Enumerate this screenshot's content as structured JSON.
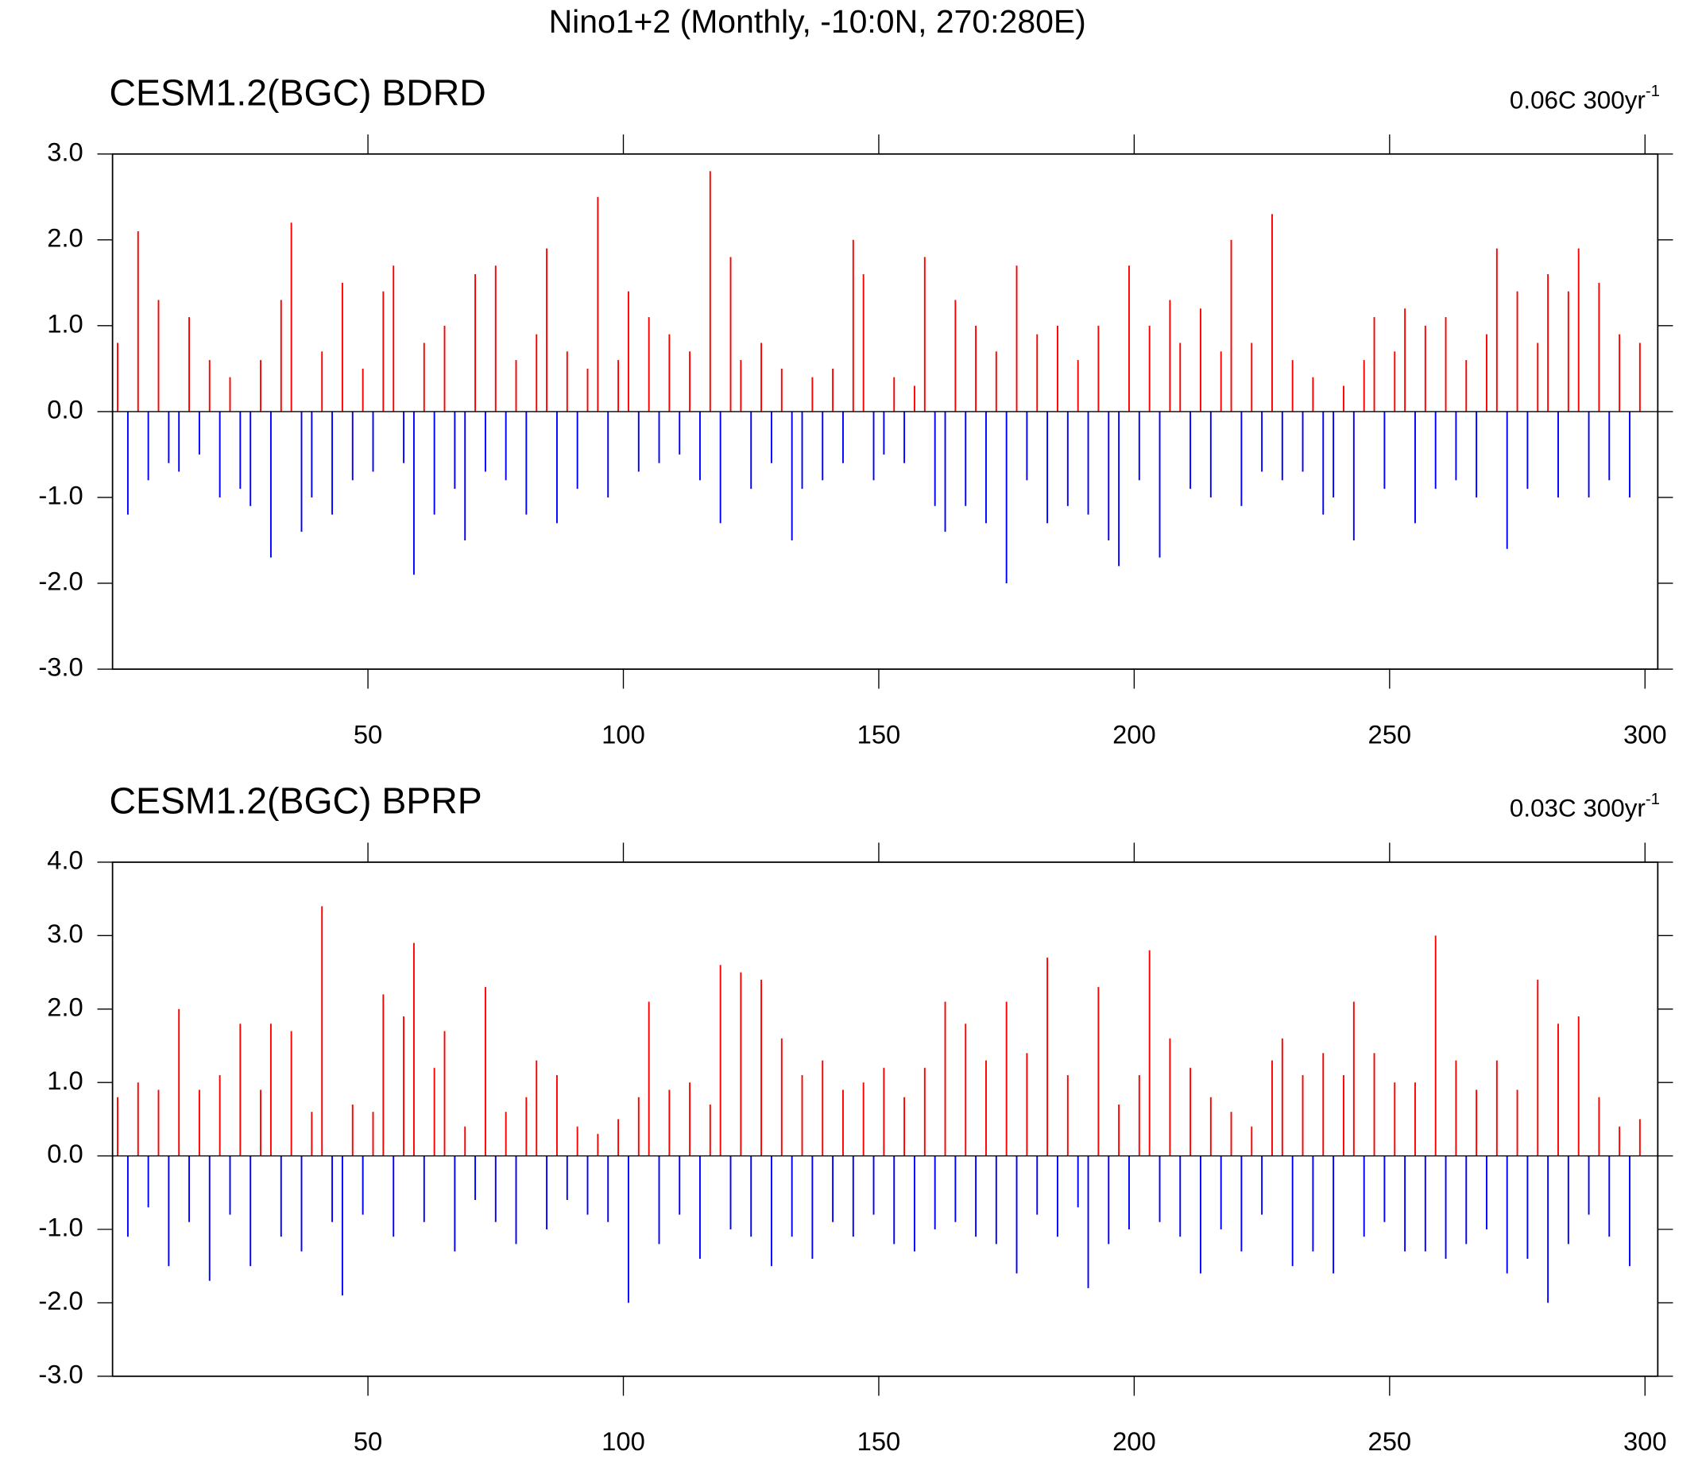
{
  "title": "Nino1+2 (Monthly, -10:0N, 270:280E)",
  "chart_data": [
    {
      "type": "bar",
      "title": "CESM1.2(BGC) BDRD",
      "annotation": "0.06C 300yr",
      "annotation_sup": "-1",
      "positive_color": "#ff0000",
      "negative_color": "#0000ff",
      "xlim": [
        0,
        302.5
      ],
      "xticks": [
        50,
        100,
        150,
        200,
        250,
        300
      ],
      "ylim": [
        -3,
        3
      ],
      "yticks": [
        {
          "value": -3,
          "label": "-3.0"
        },
        {
          "value": -2,
          "label": "-2.0"
        },
        {
          "value": -1,
          "label": "-1.0"
        },
        {
          "value": 0,
          "label": "0.0"
        },
        {
          "value": 1,
          "label": "1.0"
        },
        {
          "value": 2,
          "label": "2.0"
        },
        {
          "value": 3,
          "label": "3.0"
        }
      ],
      "x": [
        1,
        3,
        5,
        7,
        9,
        11,
        13,
        15,
        17,
        19,
        21,
        23,
        25,
        27,
        29,
        31,
        33,
        35,
        37,
        39,
        41,
        43,
        45,
        47,
        49,
        51,
        53,
        55,
        57,
        59,
        61,
        63,
        65,
        67,
        69,
        71,
        73,
        75,
        77,
        79,
        81,
        83,
        85,
        87,
        89,
        91,
        93,
        95,
        97,
        99,
        101,
        103,
        105,
        107,
        109,
        111,
        113,
        115,
        117,
        119,
        121,
        123,
        125,
        127,
        129,
        131,
        133,
        135,
        137,
        139,
        141,
        143,
        145,
        147,
        149,
        151,
        153,
        155,
        157,
        159,
        161,
        163,
        165,
        167,
        169,
        171,
        173,
        175,
        177,
        179,
        181,
        183,
        185,
        187,
        189,
        191,
        193,
        195,
        197,
        199,
        201,
        203,
        205,
        207,
        209,
        211,
        213,
        215,
        217,
        219,
        221,
        223,
        225,
        227,
        229,
        231,
        233,
        235,
        237,
        239,
        241,
        243,
        245,
        247,
        249,
        251,
        253,
        255,
        257,
        259,
        261,
        263,
        265,
        267,
        269,
        271,
        273,
        275,
        277,
        279,
        281,
        283,
        285,
        287,
        289,
        291,
        293,
        295,
        297,
        299
      ],
      "values": [
        0.8,
        -1.2,
        2.1,
        -0.8,
        1.3,
        -0.6,
        -0.7,
        1.1,
        -0.5,
        0.6,
        -1.0,
        0.4,
        -0.9,
        -1.1,
        0.6,
        -1.7,
        1.3,
        2.2,
        -1.4,
        -1.0,
        0.7,
        -1.2,
        1.5,
        -0.8,
        0.5,
        -0.7,
        1.4,
        1.7,
        -0.6,
        -1.9,
        0.8,
        -1.2,
        1.0,
        -0.9,
        -1.5,
        1.6,
        -0.7,
        1.7,
        -0.8,
        0.6,
        -1.2,
        0.9,
        1.9,
        -1.3,
        0.7,
        -0.9,
        0.5,
        2.5,
        -1.0,
        0.6,
        1.4,
        -0.7,
        1.1,
        -0.6,
        0.9,
        -0.5,
        0.7,
        -0.8,
        2.8,
        -1.3,
        1.8,
        0.6,
        -0.9,
        0.8,
        -0.6,
        0.5,
        -1.5,
        -0.9,
        0.4,
        -0.8,
        0.5,
        -0.6,
        2.0,
        1.6,
        -0.8,
        -0.5,
        0.4,
        -0.6,
        0.3,
        1.8,
        -1.1,
        -1.4,
        1.3,
        -1.1,
        1.0,
        -1.3,
        0.7,
        -2.0,
        1.7,
        -0.8,
        0.9,
        -1.3,
        1.0,
        -1.1,
        0.6,
        -1.2,
        1.0,
        -1.5,
        -1.8,
        1.7,
        -0.8,
        1.0,
        -1.7,
        1.3,
        0.8,
        -0.9,
        1.2,
        -1.0,
        0.7,
        2.0,
        -1.1,
        0.8,
        -0.7,
        2.3,
        -0.8,
        0.6,
        -0.7,
        0.4,
        -1.2,
        -1.0,
        0.3,
        -1.5,
        0.6,
        1.1,
        -0.9,
        0.7,
        1.2,
        -1.3,
        1.0,
        -0.9,
        1.1,
        -0.8,
        0.6,
        -1.0,
        0.9,
        1.9,
        -1.6,
        1.4,
        -0.9,
        0.8,
        1.6,
        -1.0,
        1.4,
        1.9,
        -1.0,
        1.5,
        -0.8,
        0.9,
        -1.0,
        0.8
      ]
    },
    {
      "type": "bar",
      "title": "CESM1.2(BGC) BPRP",
      "annotation": "0.03C 300yr",
      "annotation_sup": "-1",
      "positive_color": "#ff0000",
      "negative_color": "#0000ff",
      "xlim": [
        0,
        302.5
      ],
      "xticks": [
        50,
        100,
        150,
        200,
        250,
        300
      ],
      "ylim": [
        -3,
        4
      ],
      "yticks": [
        {
          "value": -3,
          "label": "-3.0"
        },
        {
          "value": -2,
          "label": "-2.0"
        },
        {
          "value": -1,
          "label": "-1.0"
        },
        {
          "value": 0,
          "label": "0.0"
        },
        {
          "value": 1,
          "label": "1.0"
        },
        {
          "value": 2,
          "label": "2.0"
        },
        {
          "value": 3,
          "label": "3.0"
        },
        {
          "value": 4,
          "label": "4.0"
        }
      ],
      "x": [
        1,
        3,
        5,
        7,
        9,
        11,
        13,
        15,
        17,
        19,
        21,
        23,
        25,
        27,
        29,
        31,
        33,
        35,
        37,
        39,
        41,
        43,
        45,
        47,
        49,
        51,
        53,
        55,
        57,
        59,
        61,
        63,
        65,
        67,
        69,
        71,
        73,
        75,
        77,
        79,
        81,
        83,
        85,
        87,
        89,
        91,
        93,
        95,
        97,
        99,
        101,
        103,
        105,
        107,
        109,
        111,
        113,
        115,
        117,
        119,
        121,
        123,
        125,
        127,
        129,
        131,
        133,
        135,
        137,
        139,
        141,
        143,
        145,
        147,
        149,
        151,
        153,
        155,
        157,
        159,
        161,
        163,
        165,
        167,
        169,
        171,
        173,
        175,
        177,
        179,
        181,
        183,
        185,
        187,
        189,
        191,
        193,
        195,
        197,
        199,
        201,
        203,
        205,
        207,
        209,
        211,
        213,
        215,
        217,
        219,
        221,
        223,
        225,
        227,
        229,
        231,
        233,
        235,
        237,
        239,
        241,
        243,
        245,
        247,
        249,
        251,
        253,
        255,
        257,
        259,
        261,
        263,
        265,
        267,
        269,
        271,
        273,
        275,
        277,
        279,
        281,
        283,
        285,
        287,
        289,
        291,
        293,
        295,
        297,
        299
      ],
      "values": [
        0.8,
        -1.1,
        1.0,
        -0.7,
        0.9,
        -1.5,
        2.0,
        -0.9,
        0.9,
        -1.7,
        1.1,
        -0.8,
        1.8,
        -1.5,
        0.9,
        1.8,
        -1.1,
        1.7,
        -1.3,
        0.6,
        3.4,
        -0.9,
        -1.9,
        0.7,
        -0.8,
        0.6,
        2.2,
        -1.1,
        1.9,
        2.9,
        -0.9,
        1.2,
        1.7,
        -1.3,
        0.4,
        -0.6,
        2.3,
        -0.9,
        0.6,
        -1.2,
        0.8,
        1.3,
        -1.0,
        1.1,
        -0.6,
        0.4,
        -0.8,
        0.3,
        -0.9,
        0.5,
        -2.0,
        0.8,
        2.1,
        -1.2,
        0.9,
        -0.8,
        1.0,
        -1.4,
        0.7,
        2.6,
        -1.0,
        2.5,
        -1.1,
        2.4,
        -1.5,
        1.6,
        -1.1,
        1.1,
        -1.4,
        1.3,
        -0.9,
        0.9,
        -1.1,
        1.0,
        -0.8,
        1.2,
        -1.2,
        0.8,
        -1.3,
        1.2,
        -1.0,
        2.1,
        -0.9,
        1.8,
        -1.1,
        1.3,
        -1.2,
        2.1,
        -1.6,
        1.4,
        -0.8,
        2.7,
        -1.1,
        1.1,
        -0.7,
        -1.8,
        2.3,
        -1.2,
        0.7,
        -1.0,
        1.1,
        2.8,
        -0.9,
        1.6,
        -1.1,
        1.2,
        -1.6,
        0.8,
        -1.0,
        0.6,
        -1.3,
        0.4,
        -0.8,
        1.3,
        1.6,
        -1.5,
        1.1,
        -1.3,
        1.4,
        -1.6,
        1.1,
        2.1,
        -1.1,
        1.4,
        -0.9,
        1.0,
        -1.3,
        1.0,
        -1.3,
        3.0,
        -1.4,
        1.3,
        -1.2,
        0.9,
        -1.0,
        1.3,
        -1.6,
        0.9,
        -1.4,
        2.4,
        -2.0,
        1.8,
        -1.2,
        1.9,
        -0.8,
        0.8,
        -1.1,
        0.4,
        -1.5,
        0.5
      ]
    }
  ]
}
